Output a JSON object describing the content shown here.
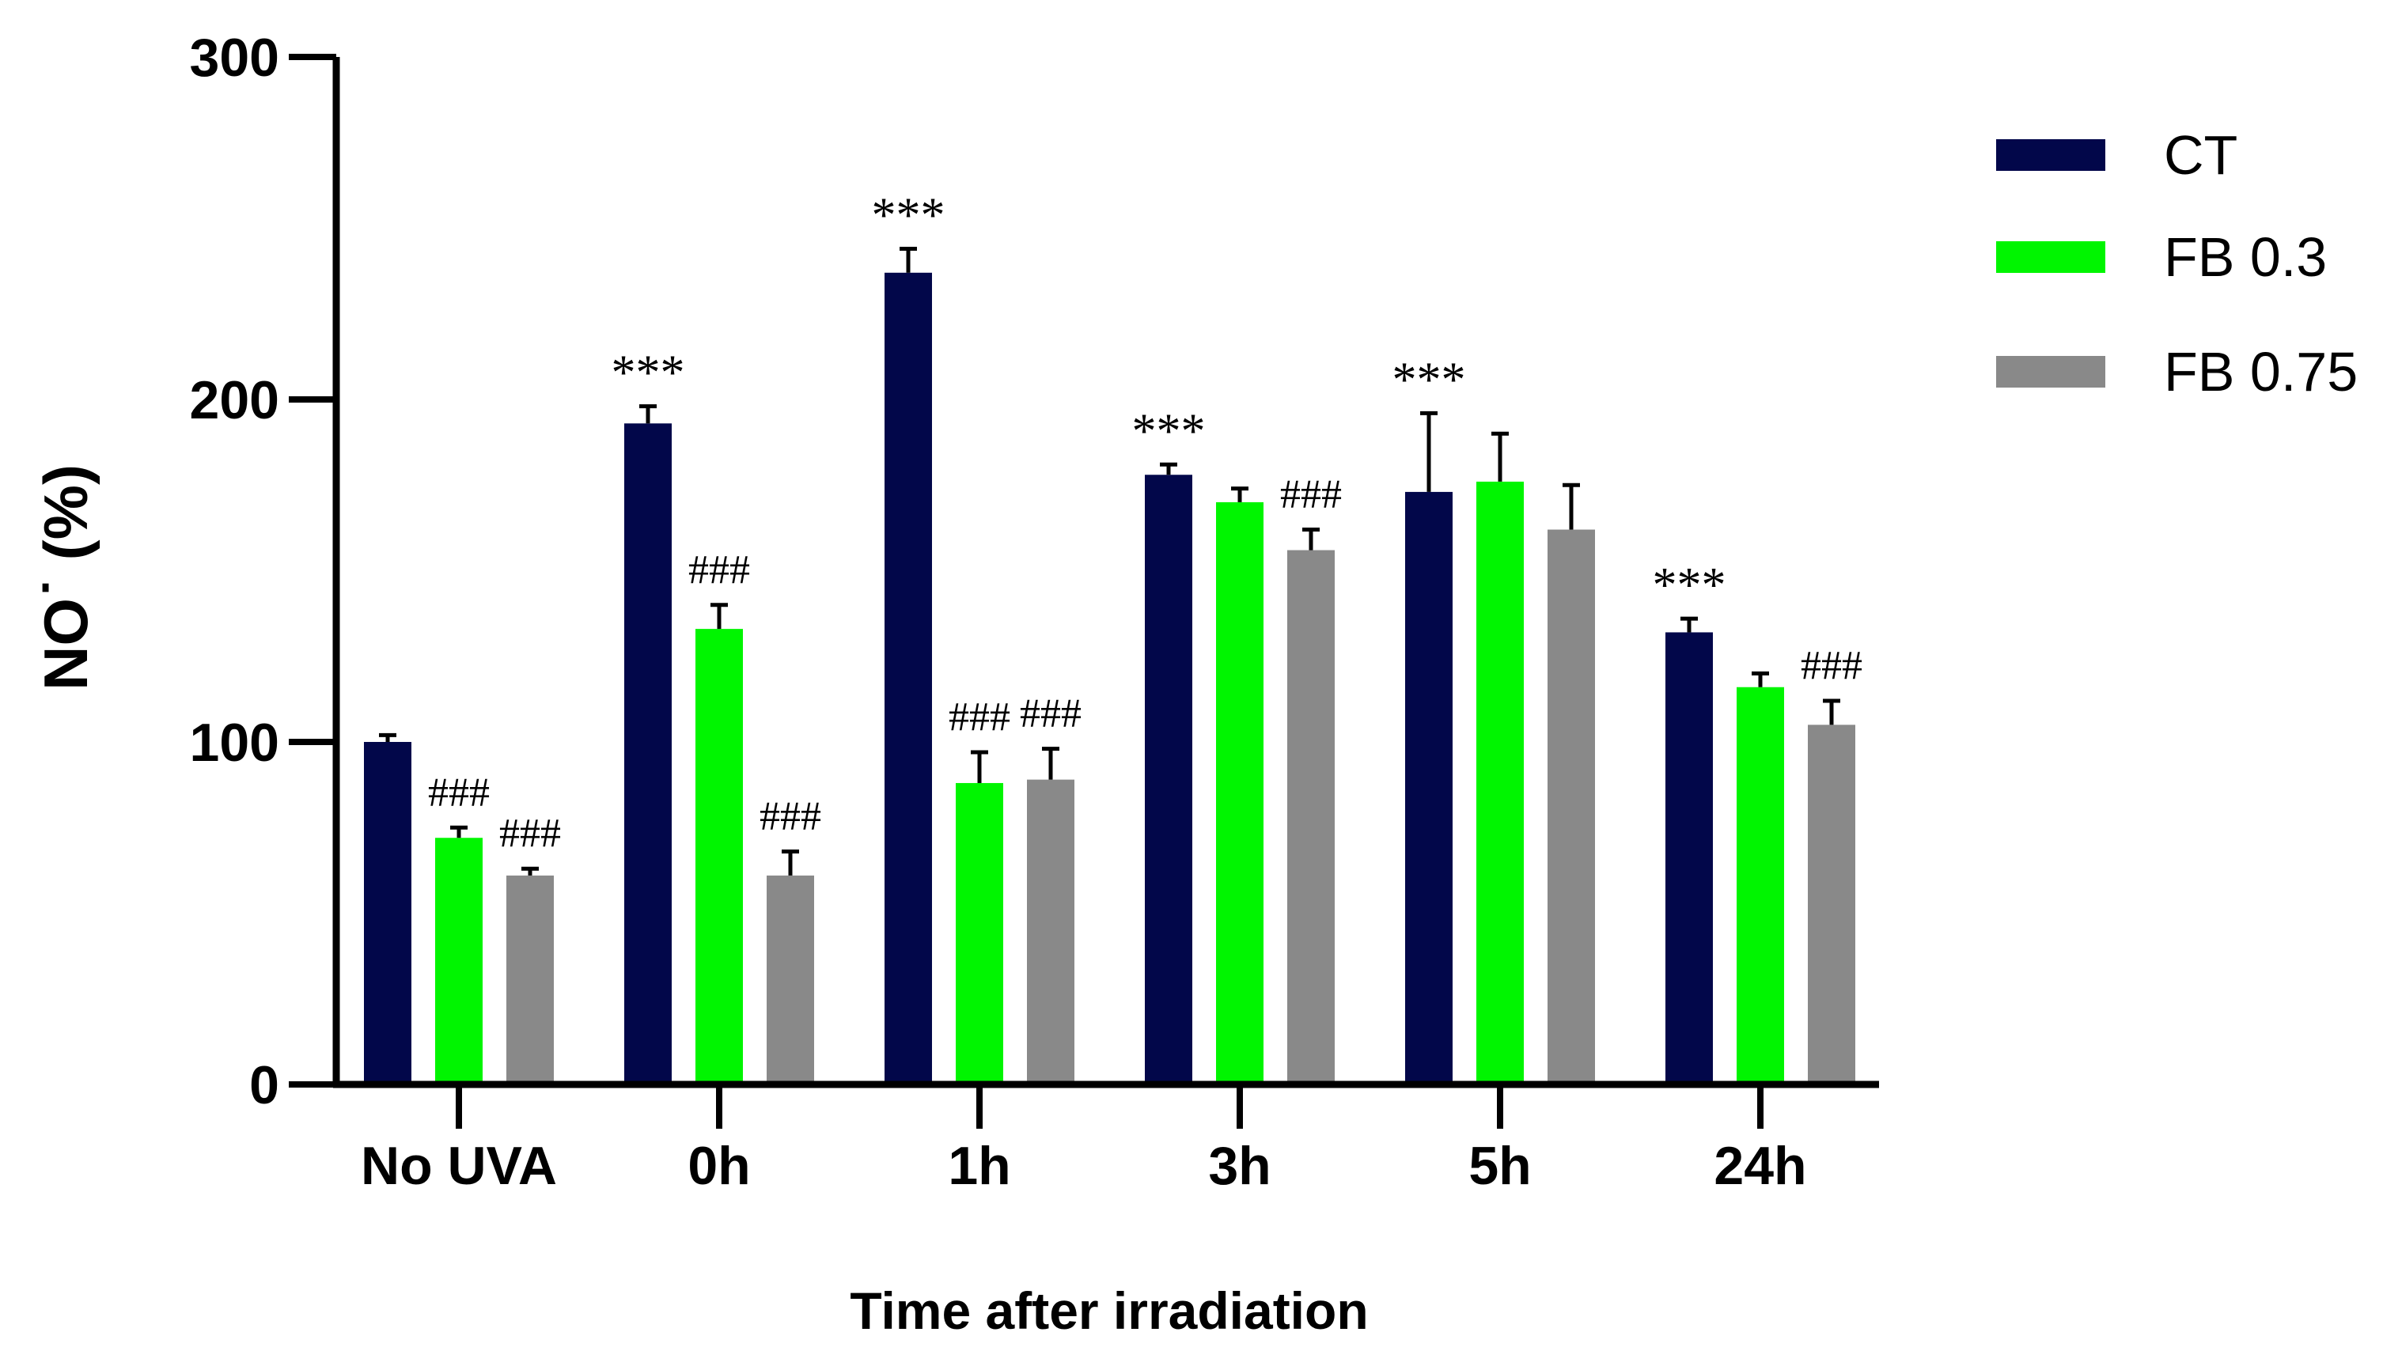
{
  "chart_data": {
    "type": "bar",
    "title": "",
    "xlabel": "Time after irradiation",
    "ylabel": "NO˙ (%)",
    "ylim": [
      0,
      300
    ],
    "yticks": [
      0,
      100,
      200,
      300
    ],
    "categories": [
      "No UVA",
      "0h",
      "1h",
      "3h",
      "5h",
      "24h"
    ],
    "legend_position": "top-right",
    "series": [
      {
        "name": "CT",
        "color": "#02074a",
        "values": [
          100,
          193,
          237,
          178,
          173,
          132
        ],
        "errors": [
          2,
          5,
          7,
          3,
          23,
          4
        ],
        "annotations": [
          "",
          "***",
          "***",
          "***",
          "***",
          "***"
        ]
      },
      {
        "name": "FB 0.3",
        "color": "#00f500",
        "values": [
          72,
          133,
          88,
          170,
          176,
          116
        ],
        "errors": [
          3,
          7,
          9,
          4,
          14,
          4
        ],
        "annotations": [
          "###",
          "###",
          "###",
          "",
          "",
          ""
        ]
      },
      {
        "name": "FB 0.75",
        "color": "#898989",
        "values": [
          61,
          61,
          89,
          156,
          162,
          105
        ],
        "errors": [
          2,
          7,
          9,
          6,
          13,
          7
        ],
        "annotations": [
          "###",
          "###",
          "###",
          "###",
          "",
          "###"
        ]
      }
    ]
  }
}
